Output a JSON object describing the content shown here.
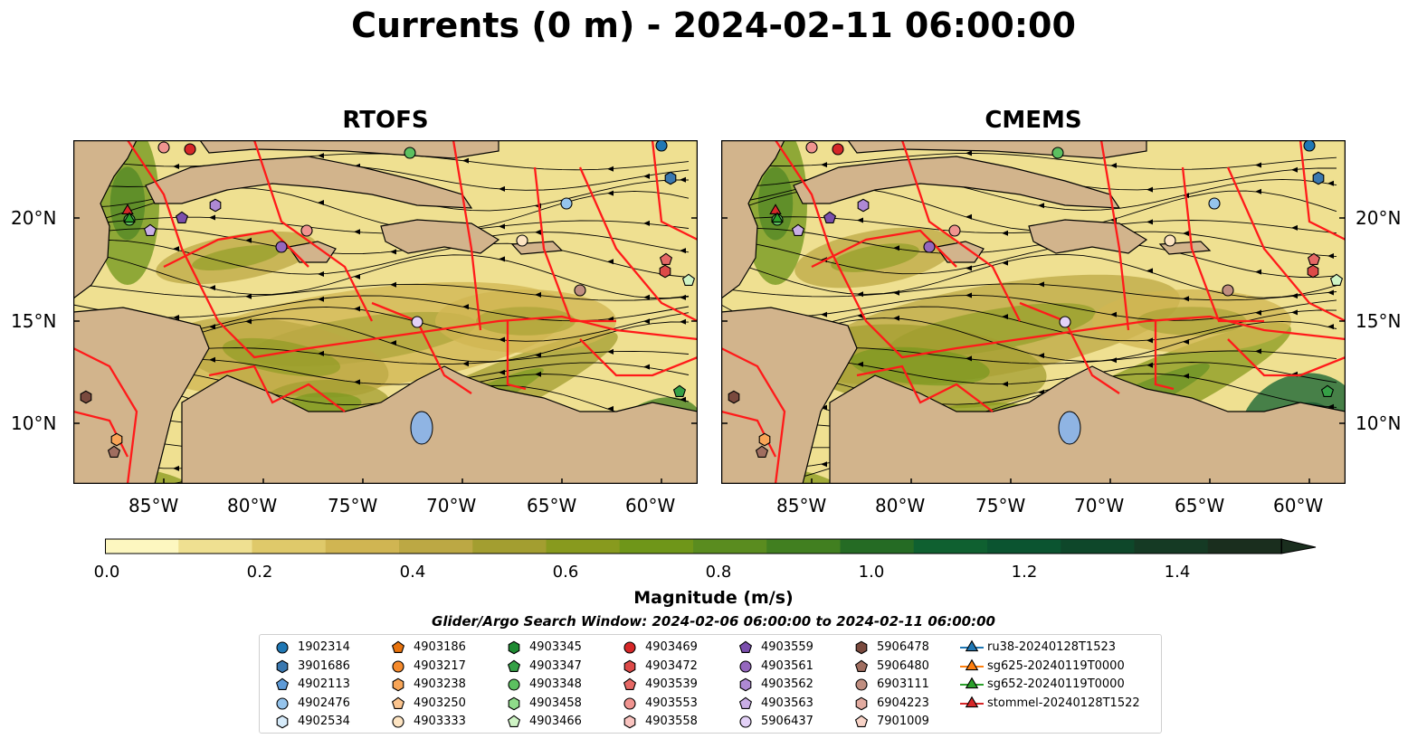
{
  "title": "Currents (0 m) - 2024-02-11 06:00:00",
  "panels": [
    {
      "title": "RTOFS"
    },
    {
      "title": "CMEMS"
    }
  ],
  "lat_labels": [
    "20°N",
    "15°N",
    "10°N"
  ],
  "lon_labels": [
    "85°W",
    "80°W",
    "75°W",
    "70°W",
    "65°W",
    "60°W"
  ],
  "colorbar": {
    "label": "Magnitude (m/s)",
    "ticks": [
      "0.0",
      "0.2",
      "0.4",
      "0.6",
      "0.8",
      "1.0",
      "1.2",
      "1.4"
    ],
    "min": 0.0,
    "max": 1.5,
    "colors": [
      "#fdf7c0",
      "#efe091",
      "#dfc96a",
      "#d0b552",
      "#bca844",
      "#a39e30",
      "#889a1e",
      "#6f9619",
      "#5a8c1f",
      "#417f20",
      "#256b24",
      "#0f6030",
      "#0b5430",
      "#0e472a",
      "#153a24",
      "#1a2e1e"
    ]
  },
  "search_window": "Glider/Argo Search Window: 2024-02-06 06:00:00 to 2024-02-11 06:00:00",
  "legend": [
    {
      "label": "1902314",
      "marker": "circle",
      "color": "#1f77b4"
    },
    {
      "label": "3901686",
      "marker": "hexagon",
      "color": "#3a78b0"
    },
    {
      "label": "4902113",
      "marker": "pentagon",
      "color": "#5e9bd8"
    },
    {
      "label": "4902476",
      "marker": "circle",
      "color": "#95c4ec"
    },
    {
      "label": "4902534",
      "marker": "hexagon",
      "color": "#d6ebfa"
    },
    {
      "label": "4903186",
      "marker": "pentagon",
      "color": "#e8720c"
    },
    {
      "label": "4903217",
      "marker": "circle",
      "color": "#f58a2c"
    },
    {
      "label": "4903238",
      "marker": "hexagon",
      "color": "#f8a557"
    },
    {
      "label": "4903250",
      "marker": "pentagon",
      "color": "#fbc48e"
    },
    {
      "label": "4903333",
      "marker": "circle",
      "color": "#fde4c2"
    },
    {
      "label": "4903345",
      "marker": "hexagon",
      "color": "#1e8a32"
    },
    {
      "label": "4903347",
      "marker": "pentagon",
      "color": "#35a046"
    },
    {
      "label": "4903348",
      "marker": "circle",
      "color": "#5cc060"
    },
    {
      "label": "4903458",
      "marker": "hexagon",
      "color": "#8fdc8a"
    },
    {
      "label": "4903466",
      "marker": "pentagon",
      "color": "#cff4c5"
    },
    {
      "label": "4903469",
      "marker": "circle",
      "color": "#d62728"
    },
    {
      "label": "4903472",
      "marker": "hexagon",
      "color": "#dd4a48"
    },
    {
      "label": "4903539",
      "marker": "pentagon",
      "color": "#e66865"
    },
    {
      "label": "4903553",
      "marker": "circle",
      "color": "#f09490"
    },
    {
      "label": "4903558",
      "marker": "hexagon",
      "color": "#f9c3bf"
    },
    {
      "label": "4903559",
      "marker": "pentagon",
      "color": "#7b4fad"
    },
    {
      "label": "4903561",
      "marker": "circle",
      "color": "#9467bd"
    },
    {
      "label": "4903562",
      "marker": "hexagon",
      "color": "#ae89d4"
    },
    {
      "label": "4903563",
      "marker": "pentagon",
      "color": "#c9aee6"
    },
    {
      "label": "5906437",
      "marker": "circle",
      "color": "#e3d1f7"
    },
    {
      "label": "5906478",
      "marker": "hexagon",
      "color": "#7a4a3e"
    },
    {
      "label": "5906480",
      "marker": "pentagon",
      "color": "#a06e60"
    },
    {
      "label": "6903111",
      "marker": "circle",
      "color": "#c08e80"
    },
    {
      "label": "6904223",
      "marker": "hexagon",
      "color": "#e2aba0"
    },
    {
      "label": "7901009",
      "marker": "pentagon",
      "color": "#f8d3c7"
    },
    {
      "label": "ru38-20240128T1523",
      "marker": "triangle-line",
      "color": "#1f77b4"
    },
    {
      "label": "sg625-20240119T0000",
      "marker": "triangle-line",
      "color": "#ff7f0e"
    },
    {
      "label": "sg652-20240119T0000",
      "marker": "triangle-line",
      "color": "#2ca02c"
    },
    {
      "label": "stommel-20240128T1522",
      "marker": "triangle-line",
      "color": "#d62728"
    }
  ]
}
